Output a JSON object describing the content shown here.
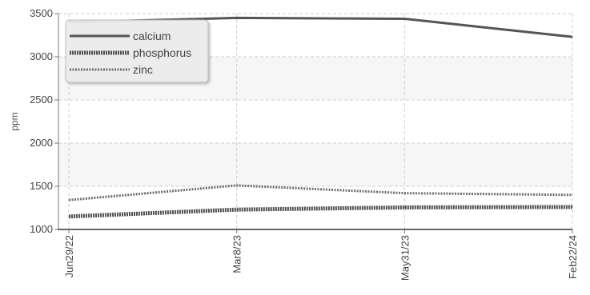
{
  "chart_data": {
    "type": "line",
    "title": "",
    "xlabel": "",
    "ylabel": "ppm",
    "categories": [
      "Jun29/22",
      "Mar8/23",
      "May31/23",
      "Feb22/24"
    ],
    "yticks": [
      1000,
      1500,
      2000,
      2500,
      3000,
      3500
    ],
    "ylim": [
      1000,
      3500
    ],
    "grid": true,
    "legend_position": "top-left",
    "series": [
      {
        "name": "calcium",
        "values": [
          3400,
          3450,
          3440,
          3230
        ],
        "color": "#555555",
        "style": "solid"
      },
      {
        "name": "phosphorus",
        "values": [
          1150,
          1230,
          1255,
          1260
        ],
        "color": "#505050",
        "style": "dense-dotted"
      },
      {
        "name": "zinc",
        "values": [
          1340,
          1510,
          1420,
          1400
        ],
        "color": "#6e6e6e",
        "style": "sparse-dotted"
      }
    ]
  }
}
